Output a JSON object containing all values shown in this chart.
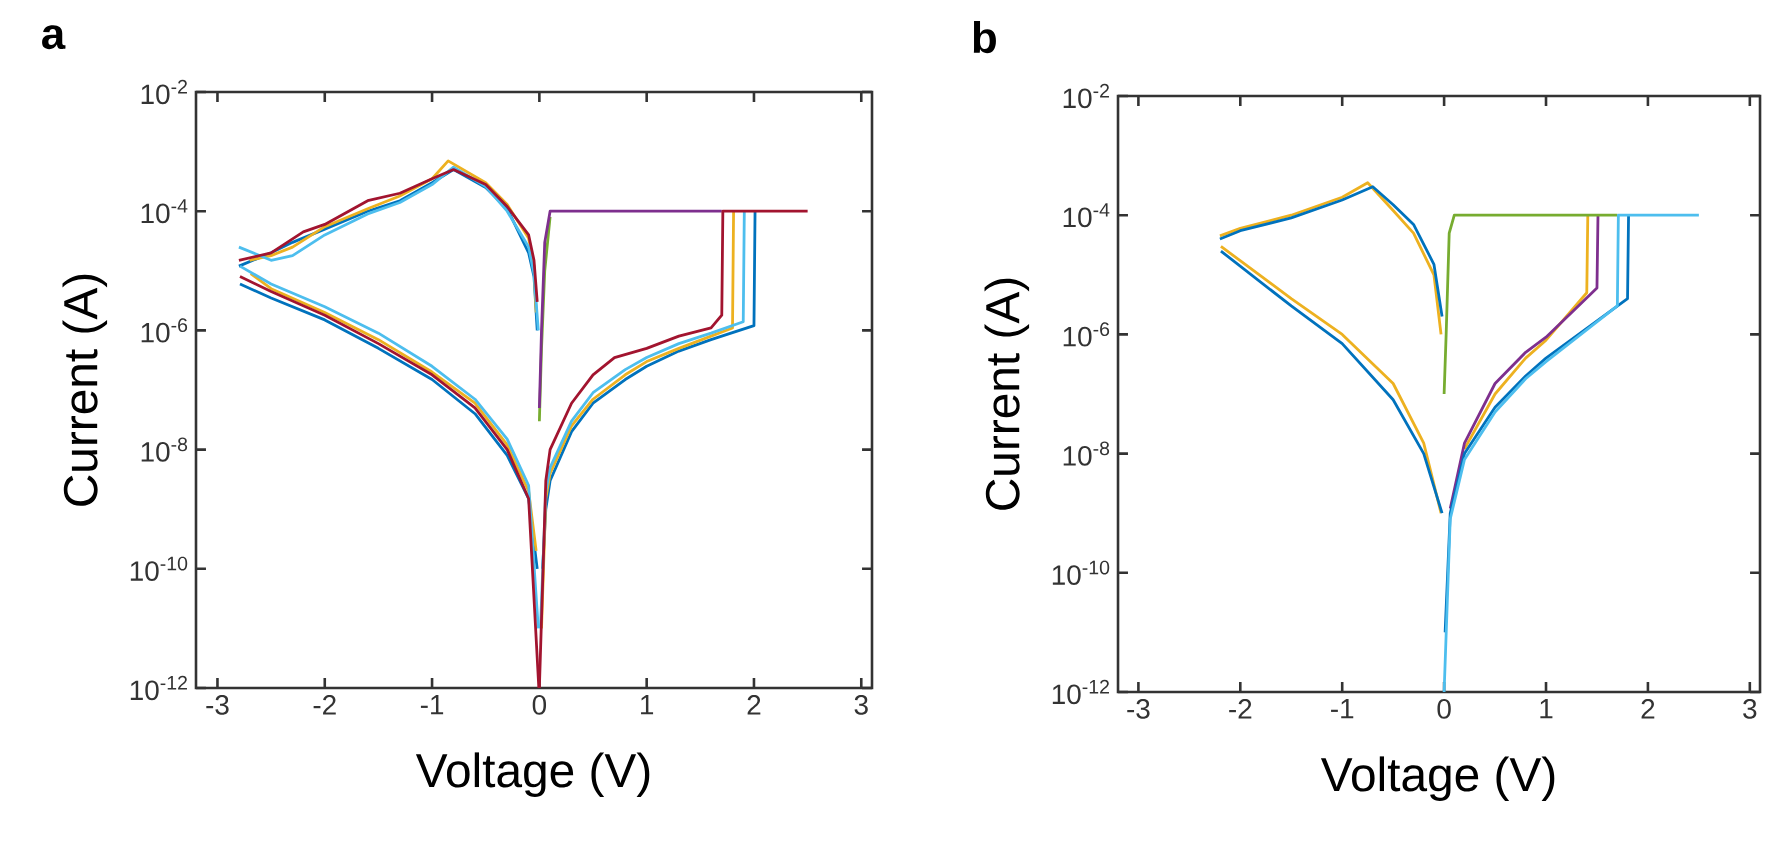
{
  "chart_data": [
    {
      "type": "line",
      "title": "a",
      "xlabel": "Voltage (V)",
      "ylabel": "Current (A)",
      "log": "y",
      "xlim": [
        -3.2,
        3.1
      ],
      "ylim": [
        1e-12,
        0.01
      ],
      "xticks": [
        -3,
        -2,
        -1,
        0,
        1,
        2,
        3
      ],
      "yticks": [
        {
          "value": 1e-12,
          "label": "10$^{-12}$"
        },
        {
          "value": 1e-10,
          "label": "10$^{-10}$"
        },
        {
          "value": 1e-08,
          "label": "10$^{-8}$"
        },
        {
          "value": 1e-06,
          "label": "10$^{-6}$"
        },
        {
          "value": 0.0001,
          "label": "10$^{-4}$"
        },
        {
          "value": 0.01,
          "label": "10$^{-2}$"
        }
      ],
      "series": [
        {
          "color": "#0072bd",
          "x": [
            0.03,
            0.06,
            0.1,
            0.3,
            0.5,
            0.8,
            1.0,
            1.3,
            1.6,
            2.0,
            2.01
          ],
          "values": [
            1e-10,
            1e-09,
            3e-09,
            2e-08,
            6e-08,
            1.5e-07,
            2.5e-07,
            4.5e-07,
            7e-07,
            1.2e-06,
            0.0001
          ]
        },
        {
          "color": "#edb120",
          "x": [
            0.02,
            0.06,
            0.1,
            0.3,
            0.5,
            0.8,
            1.0,
            1.3,
            1.6,
            1.8,
            1.81
          ],
          "values": [
            1e-11,
            1.5e-09,
            4e-09,
            2.5e-08,
            7e-08,
            1.8e-07,
            3e-07,
            5e-07,
            8e-07,
            1.1e-06,
            0.0001
          ]
        },
        {
          "color": "#4dbeee",
          "x": [
            0.01,
            0.06,
            0.1,
            0.3,
            0.5,
            0.8,
            1.0,
            1.3,
            1.6,
            1.9,
            1.91
          ],
          "values": [
            1e-11,
            2e-09,
            5e-09,
            3e-08,
            9e-08,
            2.2e-07,
            3.5e-07,
            6e-07,
            9e-07,
            1.4e-06,
            0.0001
          ]
        },
        {
          "color": "#77ac30",
          "x": [
            0,
            0.02,
            0.05,
            0.1
          ],
          "values": [
            3e-08,
            5e-07,
            1e-05,
            8e-05
          ]
        },
        {
          "color": "#7e2f8e",
          "x": [
            0,
            0.02,
            0.05,
            0.1,
            1.7
          ],
          "values": [
            5e-08,
            1e-06,
            3e-05,
            0.0001,
            0.0001
          ]
        },
        {
          "color": "#a2142f",
          "x": [
            0,
            0.06,
            0.1,
            0.3,
            0.5,
            0.7,
            1.0,
            1.3,
            1.6,
            1.7,
            1.71,
            2.5
          ],
          "values": [
            1e-12,
            3e-09,
            1e-08,
            6e-08,
            1.8e-07,
            3.5e-07,
            5e-07,
            8e-07,
            1.1e-06,
            1.8e-06,
            0.0001,
            0.0001
          ]
        },
        {
          "color": "#0072bd",
          "x": [
            -2.8,
            -2.5,
            -2.3,
            -2.0,
            -1.6,
            -1.3,
            -1.0,
            -0.8,
            -0.5,
            -0.3,
            -0.1,
            -0.05,
            -0.02
          ],
          "values": [
            1.2e-05,
            2e-05,
            3e-05,
            5e-05,
            0.0001,
            0.00015,
            0.0003,
            0.0005,
            0.00025,
            0.00011,
            2e-05,
            8e-06,
            1e-06
          ]
        },
        {
          "color": "#edb120",
          "x": [
            -2.7,
            -2.5,
            -2.3,
            -2.0,
            -1.6,
            -1.3,
            -1.0,
            -0.85,
            -0.5,
            -0.3,
            -0.1,
            -0.05,
            -0.03
          ],
          "values": [
            1.5e-05,
            1.8e-05,
            2.5e-05,
            5.5e-05,
            0.00011,
            0.00018,
            0.00035,
            0.0007,
            0.0003,
            0.00013,
            3.5e-05,
            1.2e-05,
            2e-06
          ]
        },
        {
          "color": "#4dbeee",
          "x": [
            -2.8,
            -2.5,
            -2.3,
            -2.0,
            -1.6,
            -1.3,
            -1.0,
            -0.8,
            -0.5,
            -0.3,
            -0.1,
            -0.05,
            -0.01
          ],
          "values": [
            2.5e-05,
            1.5e-05,
            1.8e-05,
            4e-05,
            9e-05,
            0.00014,
            0.00028,
            0.00055,
            0.00026,
            0.0001,
            2.5e-05,
            9e-06,
            1e-06
          ]
        },
        {
          "color": "#a2142f",
          "x": [
            -2.8,
            -2.5,
            -2.2,
            -2.0,
            -1.6,
            -1.3,
            -1.0,
            -0.8,
            -0.5,
            -0.3,
            -0.1,
            -0.05,
            -0.02
          ],
          "values": [
            1.5e-05,
            2e-05,
            4.5e-05,
            6e-05,
            0.00015,
            0.0002,
            0.00035,
            0.0005,
            0.00028,
            0.00012,
            4e-05,
            1.5e-05,
            3e-06
          ]
        },
        {
          "color": "#0072bd",
          "x": [
            -2.79,
            -2.5,
            -2.0,
            -1.5,
            -1.0,
            -0.6,
            -0.3,
            -0.1,
            -0.02
          ],
          "values": [
            6e-06,
            3.5e-06,
            1.5e-06,
            5e-07,
            1.5e-07,
            4e-08,
            8e-09,
            1.5e-09,
            1e-10
          ]
        },
        {
          "color": "#edb120",
          "x": [
            -2.69,
            -2.5,
            -2.0,
            -1.5,
            -1.0,
            -0.6,
            -0.3,
            -0.1,
            -0.03
          ],
          "values": [
            9e-06,
            5e-06,
            2e-06,
            7e-07,
            2e-07,
            6e-08,
            1.2e-08,
            2e-09,
            2e-10
          ]
        },
        {
          "color": "#4dbeee",
          "x": [
            -2.79,
            -2.5,
            -2.0,
            -1.5,
            -1.0,
            -0.6,
            -0.3,
            -0.1,
            -0.01
          ],
          "values": [
            1.2e-05,
            6e-06,
            2.5e-06,
            9e-07,
            2.5e-07,
            7e-08,
            1.5e-08,
            2.5e-09,
            1e-11
          ]
        },
        {
          "color": "#a2142f",
          "x": [
            -2.79,
            -2.5,
            -2.0,
            -1.5,
            -1.0,
            -0.6,
            -0.3,
            -0.1,
            -0.005
          ],
          "values": [
            8e-06,
            4.5e-06,
            1.8e-06,
            6e-07,
            1.8e-07,
            5e-08,
            1e-08,
            1.5e-09,
            1e-12
          ]
        }
      ]
    },
    {
      "type": "line",
      "title": "b",
      "xlabel": "Voltage (V)",
      "ylabel": "Current (A)",
      "log": "y",
      "xlim": [
        -3.2,
        3.1
      ],
      "ylim": [
        1e-12,
        0.01
      ],
      "xticks": [
        -3,
        -2,
        -1,
        0,
        1,
        2,
        3
      ],
      "yticks": [
        {
          "value": 1e-12,
          "label": "10$^{-12}$"
        },
        {
          "value": 1e-10,
          "label": "10$^{-10}$"
        },
        {
          "value": 1e-08,
          "label": "10$^{-8}$"
        },
        {
          "value": 1e-06,
          "label": "10$^{-6}$"
        },
        {
          "value": 0.0001,
          "label": "10$^{-4}$"
        },
        {
          "value": 0.01,
          "label": "10$^{-2}$"
        }
      ],
      "series": [
        {
          "color": "#edb120",
          "x": [
            0.2,
            0.5,
            0.8,
            1.0,
            1.4,
            1.41
          ],
          "values": [
            1.2e-08,
            1e-07,
            4e-07,
            8e-07,
            5e-06,
            0.0001
          ]
        },
        {
          "color": "#7e2f8e",
          "x": [
            0.06,
            0.2,
            0.5,
            0.8,
            1.0,
            1.5,
            1.51
          ],
          "values": [
            1.2e-09,
            1.5e-08,
            1.5e-07,
            5e-07,
            9e-07,
            6e-06,
            0.0001
          ]
        },
        {
          "color": "#0072bd",
          "x": [
            0.01,
            0.06,
            0.2,
            0.5,
            0.8,
            1.0,
            1.8,
            1.81
          ],
          "values": [
            1e-11,
            1e-09,
            1e-08,
            6e-08,
            2e-07,
            4e-07,
            4e-06,
            0.0001
          ]
        },
        {
          "color": "#77ac30",
          "x": [
            0,
            0.02,
            0.05,
            0.1,
            1.7
          ],
          "values": [
            1e-07,
            1e-06,
            5e-05,
            0.0001,
            0.0001
          ]
        },
        {
          "color": "#4dbeee",
          "x": [
            0,
            0.06,
            0.2,
            0.5,
            0.8,
            1.0,
            1.7,
            1.71,
            2.5
          ],
          "values": [
            1e-12,
            8e-10,
            8e-09,
            5e-08,
            1.8e-07,
            3.5e-07,
            3e-06,
            0.0001,
            0.0001
          ]
        },
        {
          "color": "#edb120",
          "x": [
            -2.2,
            -2.0,
            -1.5,
            -1.0,
            -0.75,
            -0.5,
            -0.3,
            -0.1,
            -0.03
          ],
          "values": [
            4.5e-05,
            6e-05,
            0.0001,
            0.0002,
            0.00035,
            0.00012,
            5e-05,
            1e-05,
            1e-06
          ]
        },
        {
          "color": "#0072bd",
          "x": [
            -2.2,
            -2.0,
            -1.5,
            -1.0,
            -0.7,
            -0.5,
            -0.3,
            -0.1,
            -0.02
          ],
          "values": [
            4e-05,
            5.5e-05,
            9e-05,
            0.00018,
            0.0003,
            0.00015,
            7e-05,
            1.5e-05,
            2e-06
          ]
        },
        {
          "color": "#edb120",
          "x": [
            -2.19,
            -1.5,
            -1.0,
            -0.5,
            -0.2,
            -0.03
          ],
          "values": [
            3e-05,
            4e-06,
            1e-06,
            1.5e-07,
            1.5e-08,
            1e-09
          ]
        },
        {
          "color": "#0072bd",
          "x": [
            -2.19,
            -1.5,
            -1.0,
            -0.5,
            -0.2,
            -0.02
          ],
          "values": [
            2.5e-05,
            3e-06,
            7e-07,
            8e-08,
            1e-08,
            1e-09
          ]
        }
      ]
    }
  ]
}
